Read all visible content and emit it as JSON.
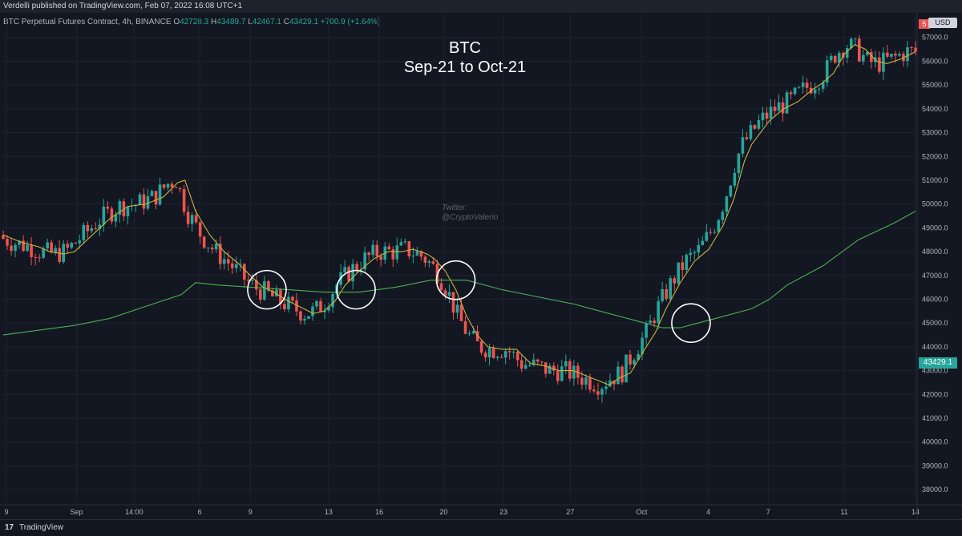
{
  "header": {
    "published": "Verdelli published on TradingView.com, Feb 07, 2022 16:08 UTC+1",
    "symbol": "BTC Perpetual Futures Contract, 4h, BINANCE",
    "open_label": "O",
    "open": "42728.3",
    "high_label": "H",
    "high": "43489.7",
    "low_label": "L",
    "low": "42467.1",
    "close_label": "C",
    "close": "43429.1",
    "change": "+700.9 (+1.64%)"
  },
  "annotation": {
    "line1": "BTC",
    "line2": "Sep-21 to Oct-21"
  },
  "watermark": {
    "line1": "Twitter:",
    "line2": "@CryptoValerio"
  },
  "price_axis": {
    "currency": "USD",
    "last_price": "43429.1",
    "last_tag": "5"
  },
  "footer": {
    "brand": "TradingView",
    "logo": "17"
  },
  "colors": {
    "up": "#26a69a",
    "down": "#ef5350",
    "ema_short": "#c9b33b",
    "ema_long": "#4caf50",
    "background": "#131722"
  },
  "chart_data": {
    "type": "candlestick",
    "x_ticks": [
      "9",
      "Sep",
      "14:00",
      "6",
      "9",
      "13",
      "16",
      "20",
      "23",
      "27",
      "Oct",
      "4",
      "7",
      "11",
      "14"
    ],
    "y_ticks": [
      "57000.0",
      "56000.0",
      "55000.0",
      "54000.0",
      "53000.0",
      "52000.0",
      "51000.0",
      "50000.0",
      "49000.0",
      "48000.0",
      "47000.0",
      "46000.0",
      "45000.0",
      "44000.0",
      "43000.0",
      "42000.0",
      "41000.0",
      "40000.0",
      "39000.0",
      "38000.0"
    ],
    "ylim": [
      37500,
      57900
    ],
    "series": [
      {
        "name": "short moving average",
        "path": [
          [
            0,
            48700
          ],
          [
            0.5,
            48400
          ],
          [
            1,
            48200
          ],
          [
            1.3,
            48000
          ],
          [
            1.7,
            47900
          ],
          [
            2,
            48000
          ],
          [
            2.5,
            48700
          ],
          [
            3,
            49400
          ],
          [
            3.5,
            49900
          ],
          [
            4,
            50000
          ],
          [
            4.5,
            50300
          ],
          [
            4.9,
            50900
          ],
          [
            5.1,
            51000
          ],
          [
            5.4,
            49700
          ],
          [
            5.8,
            48700
          ],
          [
            6.2,
            48000
          ],
          [
            6.6,
            47500
          ],
          [
            7,
            46900
          ],
          [
            7.3,
            46500
          ],
          [
            7.6,
            46300
          ],
          [
            7.9,
            46000
          ],
          [
            8.3,
            45700
          ],
          [
            8.7,
            45400
          ],
          [
            9,
            45500
          ],
          [
            9.3,
            45900
          ],
          [
            9.6,
            46600
          ],
          [
            10,
            47200
          ],
          [
            10.4,
            47700
          ],
          [
            10.8,
            48000
          ],
          [
            11.2,
            48000
          ],
          [
            11.5,
            48100
          ],
          [
            11.9,
            47900
          ],
          [
            12.1,
            47700
          ],
          [
            12.4,
            47200
          ],
          [
            12.7,
            46400
          ],
          [
            13,
            45300
          ],
          [
            13.3,
            44500
          ],
          [
            13.6,
            44000
          ],
          [
            14,
            43900
          ],
          [
            14.4,
            43900
          ],
          [
            14.8,
            43300
          ],
          [
            15.2,
            43200
          ],
          [
            15.6,
            43000
          ],
          [
            16,
            43000
          ],
          [
            16.5,
            42700
          ],
          [
            17,
            42400
          ],
          [
            17.3,
            42700
          ],
          [
            17.6,
            42900
          ],
          [
            18,
            43900
          ],
          [
            18.3,
            44600
          ],
          [
            18.6,
            45600
          ],
          [
            19,
            46700
          ],
          [
            19.4,
            47600
          ],
          [
            19.8,
            48100
          ],
          [
            20.2,
            49100
          ],
          [
            20.5,
            50200
          ],
          [
            20.8,
            51800
          ],
          [
            21,
            52500
          ],
          [
            21.5,
            53500
          ],
          [
            21.9,
            54000
          ],
          [
            22.3,
            54300
          ],
          [
            22.7,
            54800
          ],
          [
            23,
            55100
          ],
          [
            23.3,
            55500
          ],
          [
            23.6,
            56300
          ],
          [
            23.9,
            56700
          ],
          [
            24.2,
            56500
          ],
          [
            24.5,
            56000
          ],
          [
            24.8,
            55900
          ],
          [
            25.2,
            56100
          ],
          [
            25.6,
            56400
          ]
        ]
      },
      {
        "name": "long moving average",
        "path": [
          [
            0,
            44500
          ],
          [
            1,
            44700
          ],
          [
            2,
            44900
          ],
          [
            3,
            45200
          ],
          [
            4,
            45700
          ],
          [
            5,
            46200
          ],
          [
            5.4,
            46700
          ],
          [
            6,
            46600
          ],
          [
            7,
            46500
          ],
          [
            8,
            46400
          ],
          [
            9,
            46300
          ],
          [
            10,
            46300
          ],
          [
            11,
            46500
          ],
          [
            12,
            46800
          ],
          [
            13,
            46800
          ],
          [
            14,
            46400
          ],
          [
            15,
            46100
          ],
          [
            16,
            45800
          ],
          [
            17,
            45400
          ],
          [
            18,
            45000
          ],
          [
            18.5,
            44800
          ],
          [
            19,
            44800
          ],
          [
            19.5,
            45000
          ],
          [
            20,
            45200
          ],
          [
            21,
            45600
          ],
          [
            21.5,
            46000
          ],
          [
            22,
            46600
          ],
          [
            23,
            47400
          ],
          [
            24,
            48500
          ],
          [
            25,
            49200
          ],
          [
            25.6,
            49700
          ]
        ]
      }
    ],
    "circles": [
      [
        7.4,
        46400
      ],
      [
        9.9,
        46400
      ],
      [
        12.7,
        46800
      ],
      [
        19.3,
        45000
      ]
    ]
  }
}
